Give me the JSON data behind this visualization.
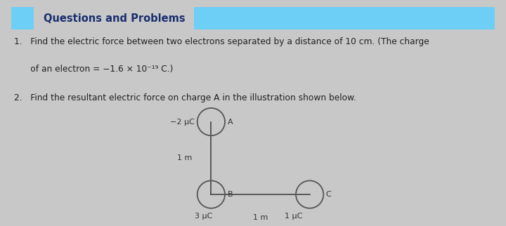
{
  "bg_color": "#c8c8c8",
  "panel_bg": "#ffffff",
  "header_bg": "#6ecff6",
  "header_text_color": "#1a2e6e",
  "header_text": "Questions and Problems",
  "q1_line1": "1.   Find the electric force between two electrons separated by a distance of 10 cm. (The charge",
  "q1_line2": "      of an electron = −1.6 × 10⁻¹⁹ C.)",
  "q2_line1": "2.   Find the resultant electric force on charge A in the illustration shown below.",
  "node_A_label": "−2 μC",
  "node_A_sublabel": "A",
  "node_B_label": "3 μC",
  "node_B_sublabel": "B",
  "node_C_label": "1 μC",
  "node_C_sublabel": "C",
  "dist_AB": "1 m",
  "dist_BC": "1 m",
  "font_family": "DejaVu Sans",
  "body_fontsize": 8.8,
  "diagram_fontsize": 8.0,
  "header_fontsize": 10.5
}
